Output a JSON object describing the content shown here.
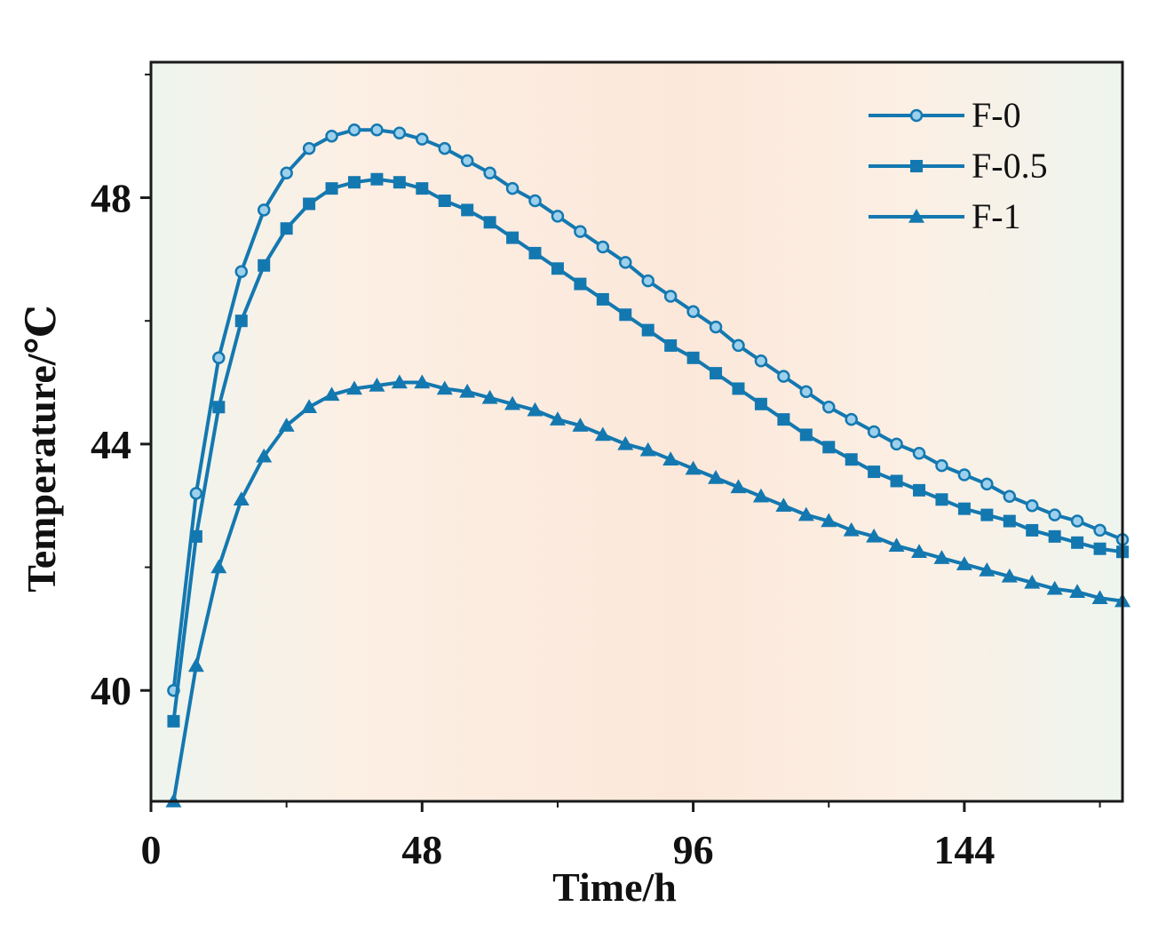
{
  "chart_data": {
    "type": "line",
    "title": "",
    "xlabel": "Time/h",
    "ylabel": "Temperature/℃",
    "xlim": [
      0,
      172
    ],
    "ylim": [
      38.2,
      50.2
    ],
    "xticks": [
      0,
      48,
      96,
      144
    ],
    "yticks": [
      40,
      44,
      48
    ],
    "legend_position": "top-right",
    "colors": {
      "series": "#1478b0",
      "marker_fill_f0": "#9cd0ec",
      "background_edge": "#eef5ee",
      "background_center": "#fbe9dc"
    },
    "series": [
      {
        "name": "F-0",
        "marker": "circle",
        "x": [
          4,
          8,
          12,
          16,
          20,
          24,
          28,
          32,
          36,
          40,
          44,
          48,
          52,
          56,
          60,
          64,
          68,
          72,
          76,
          80,
          84,
          88,
          92,
          96,
          100,
          104,
          108,
          112,
          116,
          120,
          124,
          128,
          132,
          136,
          140,
          144,
          148,
          152,
          156,
          160,
          164,
          168,
          172
        ],
        "y": [
          40.0,
          43.2,
          45.4,
          46.8,
          47.8,
          48.4,
          48.8,
          49.0,
          49.1,
          49.1,
          49.05,
          48.95,
          48.8,
          48.6,
          48.4,
          48.15,
          47.95,
          47.7,
          47.45,
          47.2,
          46.95,
          46.65,
          46.4,
          46.15,
          45.9,
          45.6,
          45.35,
          45.1,
          44.85,
          44.6,
          44.4,
          44.2,
          44.0,
          43.85,
          43.65,
          43.5,
          43.35,
          43.15,
          43.0,
          42.85,
          42.75,
          42.6,
          42.45
        ]
      },
      {
        "name": "F-0.5",
        "marker": "square",
        "x": [
          4,
          8,
          12,
          16,
          20,
          24,
          28,
          32,
          36,
          40,
          44,
          48,
          52,
          56,
          60,
          64,
          68,
          72,
          76,
          80,
          84,
          88,
          92,
          96,
          100,
          104,
          108,
          112,
          116,
          120,
          124,
          128,
          132,
          136,
          140,
          144,
          148,
          152,
          156,
          160,
          164,
          168,
          172
        ],
        "y": [
          39.5,
          42.5,
          44.6,
          46.0,
          46.9,
          47.5,
          47.9,
          48.15,
          48.25,
          48.3,
          48.25,
          48.15,
          47.95,
          47.8,
          47.6,
          47.35,
          47.1,
          46.85,
          46.6,
          46.35,
          46.1,
          45.85,
          45.6,
          45.4,
          45.15,
          44.9,
          44.65,
          44.4,
          44.15,
          43.95,
          43.75,
          43.55,
          43.4,
          43.25,
          43.1,
          42.95,
          42.85,
          42.75,
          42.6,
          42.5,
          42.4,
          42.3,
          42.25
        ]
      },
      {
        "name": "F-1",
        "marker": "triangle",
        "x": [
          4,
          8,
          12,
          16,
          20,
          24,
          28,
          32,
          36,
          40,
          44,
          48,
          52,
          56,
          60,
          64,
          68,
          72,
          76,
          80,
          84,
          88,
          92,
          96,
          100,
          104,
          108,
          112,
          116,
          120,
          124,
          128,
          132,
          136,
          140,
          144,
          148,
          152,
          156,
          160,
          164,
          168,
          172
        ],
        "y": [
          38.2,
          40.4,
          42.0,
          43.1,
          43.8,
          44.3,
          44.6,
          44.8,
          44.9,
          44.95,
          45.0,
          45.0,
          44.9,
          44.85,
          44.75,
          44.65,
          44.55,
          44.4,
          44.3,
          44.15,
          44.0,
          43.9,
          43.75,
          43.6,
          43.45,
          43.3,
          43.15,
          43.0,
          42.85,
          42.75,
          42.6,
          42.5,
          42.35,
          42.25,
          42.15,
          42.05,
          41.95,
          41.85,
          41.75,
          41.65,
          41.6,
          41.5,
          41.45
        ]
      }
    ]
  }
}
